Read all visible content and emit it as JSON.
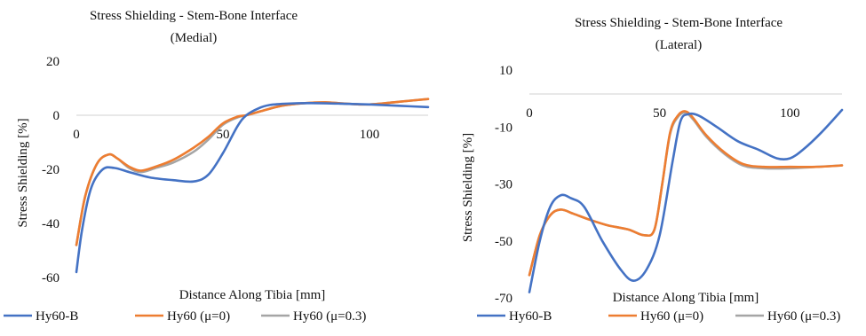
{
  "chart_data": [
    {
      "type": "line",
      "title": "Stress Shielding - Stem-Bone Interface",
      "subtitle": "(Medial)",
      "xlabel": "Distance Along Tibia [mm]",
      "ylabel": "Stress Shielding [%]",
      "xlim": [
        0,
        120
      ],
      "ylim": [
        -60,
        20
      ],
      "x_ticks": [
        "0",
        "50",
        "100"
      ],
      "y_ticks": [
        "20",
        "0",
        "-20",
        "-40",
        "-60"
      ],
      "grid": false,
      "legend_position": "bottom",
      "series": [
        {
          "name": "Hy60-B",
          "color": "#4472c4",
          "x": [
            0,
            2,
            5,
            9,
            13,
            18,
            25,
            33,
            40,
            45,
            50,
            55,
            58,
            62,
            66,
            72,
            80,
            90,
            100,
            110,
            120
          ],
          "y": [
            -58,
            -42,
            -27,
            -20,
            -19.5,
            -21,
            -23,
            -24,
            -24.5,
            -22,
            -14,
            -4,
            0,
            2.5,
            3.8,
            4.3,
            4.5,
            4.3,
            4,
            3.5,
            3
          ]
        },
        {
          "name": "Hy60 (μ=0)",
          "color": "#ed7d31",
          "x": [
            0,
            3,
            7,
            11,
            14,
            18,
            22,
            27,
            33,
            40,
            45,
            50,
            55,
            58,
            63,
            70,
            78,
            85,
            92,
            100,
            110,
            120
          ],
          "y": [
            -48,
            -30,
            -18,
            -14.5,
            -16,
            -19,
            -20.5,
            -19,
            -16.5,
            -12,
            -8,
            -3,
            -0.5,
            0,
            1.5,
            3.5,
            4.5,
            4.8,
            4.3,
            4,
            5,
            6
          ]
        },
        {
          "name": "Hy60 (μ=0.3)",
          "color": "#a5a5a5",
          "x": [
            0,
            3,
            7,
            11,
            14,
            18,
            22,
            27,
            33,
            40,
            45,
            50,
            55,
            58,
            63,
            70,
            78,
            85,
            92,
            100,
            110,
            120
          ],
          "y": [
            -48,
            -30,
            -18,
            -14.5,
            -16,
            -19.5,
            -21,
            -19.5,
            -17.5,
            -13.5,
            -9,
            -3.5,
            -0.8,
            0,
            1.5,
            3.5,
            4.5,
            4.8,
            4.3,
            4,
            5,
            6
          ]
        }
      ]
    },
    {
      "type": "line",
      "title": "Stress Shielding - Stem-Bone Interface",
      "subtitle": "(Lateral)",
      "xlabel": "Distance Along Tibia [mm]",
      "ylabel": "Stress Shielding [%]",
      "xlim": [
        0,
        120
      ],
      "ylim": [
        -70,
        10
      ],
      "x_ticks": [
        "0",
        "50",
        "100"
      ],
      "y_ticks": [
        "10",
        "-10",
        "-30",
        "-50",
        "-70"
      ],
      "grid": false,
      "legend_position": "bottom",
      "series": [
        {
          "name": "Hy60-B",
          "color": "#4472c4",
          "x": [
            0,
            4,
            8,
            12,
            16,
            21,
            28,
            35,
            40,
            45,
            50,
            55,
            58,
            61,
            65,
            72,
            80,
            88,
            95,
            100,
            105,
            112,
            120
          ],
          "y": [
            -68,
            -50,
            -38,
            -34,
            -35,
            -38,
            -50,
            -60,
            -64,
            -60,
            -48,
            -22,
            -8,
            -5.5,
            -6,
            -10,
            -15,
            -18,
            -21,
            -21,
            -18,
            -12,
            -4
          ]
        },
        {
          "name": "Hy60 (μ=0)",
          "color": "#ed7d31",
          "x": [
            0,
            4,
            8,
            12,
            17,
            23,
            30,
            38,
            44,
            48,
            51,
            54,
            57,
            60,
            63,
            68,
            75,
            82,
            90,
            100,
            110,
            120
          ],
          "y": [
            -62,
            -48,
            -41,
            -39,
            -40.5,
            -42.5,
            -44.5,
            -46,
            -48,
            -46,
            -30,
            -12,
            -6,
            -4.5,
            -7,
            -13,
            -19,
            -23,
            -24,
            -24,
            -24,
            -23.5
          ]
        },
        {
          "name": "Hy60 (μ=0.3)",
          "color": "#a5a5a5",
          "x": [
            0,
            4,
            8,
            12,
            17,
            23,
            30,
            38,
            44,
            48,
            51,
            54,
            57,
            60,
            63,
            68,
            75,
            82,
            90,
            100,
            110,
            120
          ],
          "y": [
            -62,
            -48,
            -41,
            -39,
            -40.5,
            -42.5,
            -44.5,
            -46,
            -48,
            -46,
            -30,
            -12.5,
            -6.5,
            -5,
            -7.5,
            -13.5,
            -19.5,
            -23.5,
            -24.5,
            -24.5,
            -24,
            -23.5
          ]
        }
      ]
    }
  ]
}
